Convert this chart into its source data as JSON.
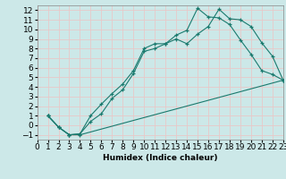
{
  "background_color": "#cce8e8",
  "grid_color": "#e8c8c8",
  "line_color": "#1a7a6e",
  "xlabel": "Humidex (Indice chaleur)",
  "xlim": [
    0,
    23
  ],
  "ylim": [
    -1.5,
    12.5
  ],
  "xticks": [
    0,
    1,
    2,
    3,
    4,
    5,
    6,
    7,
    8,
    9,
    10,
    11,
    12,
    13,
    14,
    15,
    16,
    17,
    18,
    19,
    20,
    21,
    22,
    23
  ],
  "yticks": [
    -1,
    0,
    1,
    2,
    3,
    4,
    5,
    6,
    7,
    8,
    9,
    10,
    11,
    12
  ],
  "curve1_x": [
    1,
    2,
    3,
    4,
    5,
    6,
    7,
    8,
    9,
    10,
    11,
    12,
    13,
    14,
    15,
    16,
    17,
    18,
    19,
    20,
    21,
    22,
    23
  ],
  "curve1_y": [
    1.0,
    -0.2,
    -1.0,
    -0.9,
    1.0,
    2.2,
    3.3,
    4.3,
    5.7,
    8.0,
    8.5,
    8.5,
    9.4,
    9.9,
    12.2,
    11.3,
    11.2,
    10.5,
    8.9,
    7.4,
    5.7,
    5.3,
    4.7
  ],
  "curve2_x": [
    1,
    2,
    3,
    4,
    5,
    6,
    7,
    8,
    9,
    10,
    11,
    12,
    13,
    14,
    15,
    16,
    17,
    18,
    19,
    20,
    21,
    22,
    23
  ],
  "curve2_y": [
    1.0,
    -0.2,
    -1.0,
    -0.9,
    0.4,
    1.2,
    2.8,
    3.7,
    5.4,
    7.7,
    8.0,
    8.5,
    9.0,
    8.5,
    9.5,
    10.3,
    12.1,
    11.1,
    11.0,
    10.3,
    8.6,
    7.2,
    4.7
  ],
  "curve3_x": [
    1,
    2,
    3,
    4,
    23
  ],
  "curve3_y": [
    1.0,
    -0.2,
    -1.0,
    -1.0,
    4.7
  ],
  "figsize": [
    3.2,
    2.0
  ],
  "dpi": 100,
  "font_size": 6.5
}
